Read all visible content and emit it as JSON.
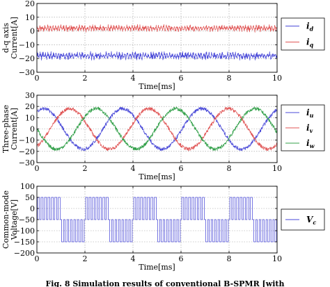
{
  "chart_data": [
    {
      "type": "line",
      "ylabel_lines": [
        "d-q axis",
        "Current[A]"
      ],
      "xlabel": "Time[ms]",
      "xlim": [
        0,
        10
      ],
      "ylim": [
        -30,
        20
      ],
      "xticks": [
        0,
        2,
        4,
        6,
        8,
        10
      ],
      "yticks": [
        -30,
        -20,
        -10,
        0,
        10,
        20
      ],
      "grid": true,
      "legend_placement": "right",
      "series": [
        {
          "name": "i",
          "sub": "d",
          "color": "#4a4ad8",
          "mean": -18,
          "ripple": 3,
          "waveform": "dc-with-ripple"
        },
        {
          "name": "i",
          "sub": "q",
          "color": "#e05555",
          "mean": 2,
          "ripple": 2.5,
          "waveform": "dc-with-ripple"
        }
      ]
    },
    {
      "type": "line",
      "ylabel_lines": [
        "Three-phase",
        "Current[A]"
      ],
      "xlabel": "Time[ms]",
      "xlim": [
        0,
        10
      ],
      "ylim": [
        -30,
        30
      ],
      "xticks": [
        0,
        2,
        4,
        6,
        8,
        10
      ],
      "yticks": [
        -30,
        -20,
        -10,
        0,
        10,
        20,
        30
      ],
      "grid": true,
      "legend_placement": "right",
      "period_ms": 3.3,
      "series": [
        {
          "name": "i",
          "sub": "u",
          "color": "#4a4ad8",
          "amplitude": 18,
          "phase_deg": 60,
          "waveform": "sine"
        },
        {
          "name": "i",
          "sub": "v",
          "color": "#e05555",
          "amplitude": 18,
          "phase_deg": -60,
          "waveform": "sine"
        },
        {
          "name": "i",
          "sub": "w",
          "color": "#33a04a",
          "amplitude": 18,
          "phase_deg": 180,
          "waveform": "sine"
        }
      ]
    },
    {
      "type": "line",
      "ylabel_lines": [
        "Common-mode",
        "Voltage[V]"
      ],
      "xlabel": "Time[ms]",
      "xlim": [
        0,
        10
      ],
      "ylim": [
        -200,
        100
      ],
      "xticks": [
        0,
        2,
        4,
        6,
        8,
        10
      ],
      "yticks": [
        -200,
        -150,
        -100,
        -50,
        0,
        50,
        100
      ],
      "grid": true,
      "legend_placement": "right",
      "series": [
        {
          "name": "V",
          "sub": "c",
          "color": "#4a4ad8",
          "levels": [
            -150,
            -50,
            50
          ],
          "waveform": "pwm-steps"
        }
      ]
    }
  ],
  "caption": "Fig. 8   Simulation results of conventional B-SPMR [with"
}
